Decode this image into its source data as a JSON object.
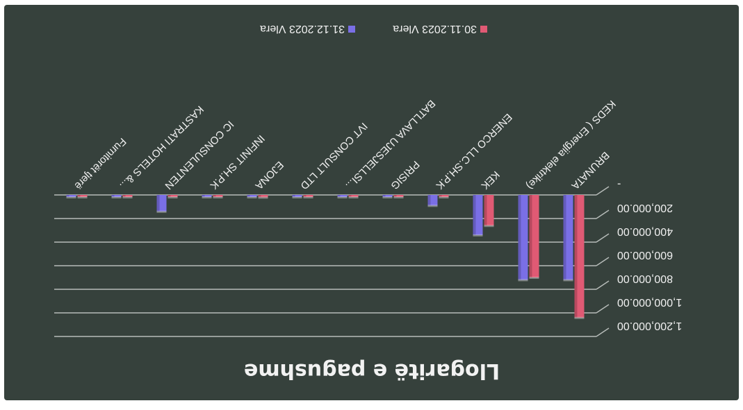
{
  "chart_data": {
    "type": "bar",
    "orientation": "image rotated 180 degrees",
    "title": "Llogaritë e pagushme",
    "categories": [
      "BRUNATA",
      "KEDS ( Energjia elektrike)",
      "KEK",
      "ENERCO LLC.SH.P.K",
      "PRISIG",
      "BATLLAVA UJESJELLSI...",
      "IVT CONSULT LTD",
      "EJONA",
      "INFINIT SH.P.K",
      "IC CONSULENTEN",
      "KASTRATI HOTELS &...",
      "Furnitorët tjerë"
    ],
    "series": [
      {
        "name": "30.11.2023 Vlera",
        "color": "#e05a74",
        "values": [
          1040000,
          700000,
          260000,
          0,
          0,
          10000,
          10000,
          20000,
          10000,
          0,
          15000,
          10000
        ]
      },
      {
        "name": "31.12.2023 Vlera",
        "color": "#7a6fe6",
        "values": [
          720000,
          720000,
          340000,
          90000,
          10000,
          10000,
          0,
          0,
          10000,
          140000,
          0,
          10000
        ]
      }
    ],
    "y_ticks": [
      "-",
      "200,000.00",
      "400,000.00",
      "600,000.00",
      "800,000.00",
      "1,000,000.00",
      "1,200,000.00"
    ],
    "ylim": [
      0,
      1200000
    ],
    "grid": true,
    "legend_position": "bottom"
  }
}
